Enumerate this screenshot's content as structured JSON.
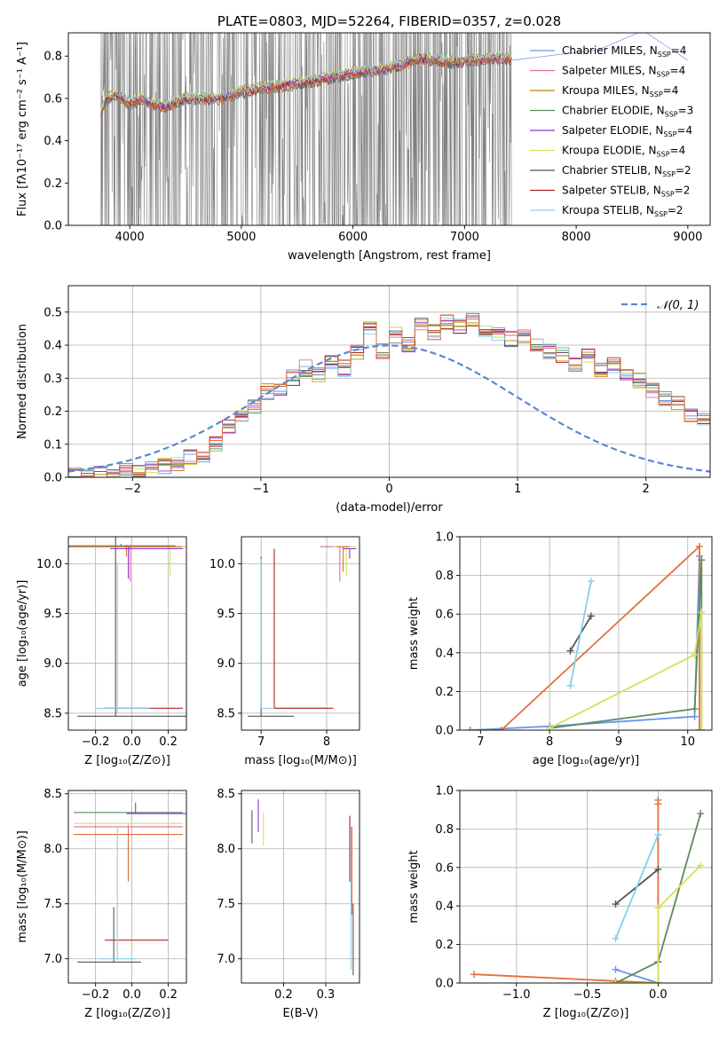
{
  "colors": {
    "chab_miles": "#6495ed",
    "salp_miles": "#db7093",
    "krou_miles": "#b8860b",
    "chab_elodie": "#5d8a5d",
    "salp_elodie": "#9932cc",
    "krou_elodie": "#d4e157",
    "chab_stelib": "#555555",
    "salp_stelib": "#b22222",
    "krou_stelib": "#87ceeb",
    "spectrum": "#808080",
    "highlight": "#e2703a",
    "gauss": "#5b86d6"
  },
  "chart_data": [
    {
      "id": "spectrum",
      "type": "line",
      "title": "PLATE=0803, MJD=52264, FIBERID=0357, z=0.028",
      "xlabel": "wavelength [Angstrom, rest frame]",
      "ylabel": "Flux [fλ10⁻¹⁷ erg cm⁻² s⁻¹ A⁻¹]",
      "xlim": [
        3450,
        9200
      ],
      "ylim": [
        0,
        0.91
      ],
      "xticks": [
        4000,
        5000,
        6000,
        7000,
        8000,
        9000
      ],
      "yticks": [
        0.0,
        0.2,
        0.4,
        0.6,
        0.8
      ],
      "data_range": [
        3740,
        7420
      ],
      "model_anchor_x": [
        3740,
        3800,
        3900,
        4000,
        4100,
        4300,
        4500,
        4800,
        5000,
        5200,
        5500,
        5800,
        6000,
        6300,
        6600,
        6900,
        7200,
        7400
      ],
      "model_anchor_y": [
        0.53,
        0.6,
        0.62,
        0.57,
        0.6,
        0.56,
        0.6,
        0.6,
        0.63,
        0.65,
        0.67,
        0.7,
        0.72,
        0.74,
        0.79,
        0.77,
        0.79,
        0.79
      ],
      "legend": {
        "placement": "upper right",
        "entries": [
          {
            "label": "Chabrier MILES, N",
            "sub": "SSP",
            "suffix": "=4",
            "color_key": "chab_miles"
          },
          {
            "label": "Salpeter MILES, N",
            "sub": "SSP",
            "suffix": "=4",
            "color_key": "salp_miles"
          },
          {
            "label": "Kroupa MILES, N",
            "sub": "SSP",
            "suffix": "=4",
            "color_key": "krou_miles"
          },
          {
            "label": "Chabrier ELODIE, N",
            "sub": "SSP",
            "suffix": "=3",
            "color_key": "chab_elodie"
          },
          {
            "label": "Salpeter ELODIE, N",
            "sub": "SSP",
            "suffix": "=4",
            "color_key": "salp_elodie"
          },
          {
            "label": "Kroupa ELODIE, N",
            "sub": "SSP",
            "suffix": "=4",
            "color_key": "krou_elodie"
          },
          {
            "label": "Chabrier STELIB, N",
            "sub": "SSP",
            "suffix": "=2",
            "color_key": "chab_stelib"
          },
          {
            "label": "Salpeter STELIB, N",
            "sub": "SSP",
            "suffix": "=2",
            "color_key": "salp_stelib"
          },
          {
            "label": "Kroupa STELIB, N",
            "sub": "SSP",
            "suffix": "=2",
            "color_key": "krou_stelib"
          }
        ]
      }
    },
    {
      "id": "residuals",
      "type": "line",
      "xlabel": "(data-model)/error",
      "ylabel": "Normed distribution",
      "xlim": [
        -2.5,
        2.5
      ],
      "ylim": [
        0,
        0.58
      ],
      "xticks": [
        -2,
        -1,
        0,
        1,
        2
      ],
      "yticks": [
        0.0,
        0.1,
        0.2,
        0.3,
        0.4,
        0.5
      ],
      "bin_width": 0.1,
      "bin_start": -2.5,
      "base_values": [
        0.005,
        0.01,
        0.012,
        0.015,
        0.018,
        0.022,
        0.027,
        0.034,
        0.042,
        0.06,
        0.07,
        0.1,
        0.15,
        0.19,
        0.21,
        0.26,
        0.27,
        0.3,
        0.33,
        0.31,
        0.35,
        0.33,
        0.38,
        0.45,
        0.38,
        0.43,
        0.4,
        0.47,
        0.44,
        0.47,
        0.46,
        0.48,
        0.45,
        0.44,
        0.42,
        0.43,
        0.4,
        0.38,
        0.37,
        0.34,
        0.37,
        0.33,
        0.34,
        0.31,
        0.29,
        0.26,
        0.24,
        0.22,
        0.19,
        0.18,
        0.15,
        0.13,
        0.1,
        0.09,
        0.08,
        0.06,
        0.05,
        0.04,
        0.03,
        0.03,
        0.03,
        0.02,
        0.02,
        0.02,
        0.01,
        0.01
      ],
      "gauss_label": "𝒩(0, 1)",
      "legend": {
        "placement": "upper right"
      }
    },
    {
      "id": "age_vs_Z",
      "type": "scatter",
      "xlabel": "Z [log₁₀(Z/Z⊙)]",
      "ylabel": "age  [log₁₀(age/yr)]",
      "xlim": [
        -0.35,
        0.3
      ],
      "ylim": [
        8.33,
        10.27
      ],
      "xticks": [
        -0.2,
        0.0,
        0.2
      ],
      "yticks": [
        8.5,
        9.0,
        9.5,
        10.0
      ],
      "ytick_labels": [
        "8.5",
        "9.0",
        "9.5",
        "10.0"
      ],
      "xtick_labels": [
        "−0.2",
        "0.0",
        "0.2"
      ],
      "points": [
        {
          "x": -0.09,
          "y": 10.17,
          "xerr": [
            0.4,
            0.38
          ],
          "yerr": [
            1.7,
            0.1
          ],
          "color_key": "chab_stelib"
        },
        {
          "x": -0.01,
          "y": 10.17,
          "xerr": [
            0.3,
            0.3
          ],
          "yerr": [
            0.35,
            0.02
          ],
          "color_key": "salp_miles"
        },
        {
          "x": 0.21,
          "y": 10.17,
          "xerr": [
            0.5,
            0.1
          ],
          "yerr": [
            0.3,
            0.02
          ],
          "color_key": "krou_elodie"
        },
        {
          "x": -0.03,
          "y": 10.17,
          "xerr": [
            0.4,
            0.3
          ],
          "yerr": [
            0.1,
            0.02
          ],
          "color_key": "highlight"
        },
        {
          "x": -0.06,
          "y": 10.18,
          "xerr": [
            0.3,
            0.3
          ],
          "yerr": [
            0.0,
            0.02
          ],
          "color_key": "chab_elodie"
        },
        {
          "x": -0.02,
          "y": 10.15,
          "xerr": [
            0.1,
            0.3
          ],
          "yerr": [
            0.3,
            0.02
          ],
          "color_key": "salp_elodie"
        },
        {
          "x": -0.2,
          "y": 8.47,
          "xerr": [
            0.1,
            0.5
          ],
          "yerr": [
            0.0,
            0.0
          ],
          "color_key": "chab_stelib"
        },
        {
          "x": 0.25,
          "y": 8.55,
          "xerr": [
            0.4,
            0.03
          ],
          "yerr": [
            0.0,
            0.0
          ],
          "color_key": "salp_stelib"
        },
        {
          "x": -0.1,
          "y": 8.55,
          "xerr": [
            0.1,
            0.2
          ],
          "yerr": [
            0.0,
            0.0
          ],
          "color_key": "krou_stelib"
        },
        {
          "x": -0.08,
          "y": 10.0,
          "xerr": [
            0.0,
            0.0
          ],
          "yerr": [
            1.5,
            0.0
          ],
          "color_key": "krou_stelib"
        }
      ]
    },
    {
      "id": "age_vs_mass",
      "type": "scatter",
      "xlabel": "mass [log₁₀(M/M⊙)]",
      "xlim": [
        6.7,
        8.5
      ],
      "ylim": [
        8.33,
        10.27
      ],
      "xticks": [
        7,
        8
      ],
      "yticks": [
        8.5,
        9.0,
        9.5,
        10.0
      ],
      "ytick_labels": [
        "8.5",
        "9.0",
        "9.5",
        "10.0"
      ],
      "xtick_labels": [
        "7",
        "8"
      ],
      "points": [
        {
          "x": 7.0,
          "y": 10.07,
          "xerr": [
            0.0,
            0.0
          ],
          "yerr": [
            1.6,
            0.0
          ],
          "color_key": "chab_stelib"
        },
        {
          "x": 7.2,
          "y": 10.15,
          "xerr": [
            0.0,
            0.0
          ],
          "yerr": [
            1.6,
            0.0
          ],
          "color_key": "salp_stelib"
        },
        {
          "x": 7.0,
          "y": 8.55,
          "xerr": [
            0.0,
            0.0
          ],
          "yerr": [
            0.0,
            1.5
          ],
          "color_key": "krou_stelib"
        },
        {
          "x": 7.02,
          "y": 8.55,
          "xerr": [
            0.0,
            1.0
          ],
          "yerr": [
            0.0,
            0.0
          ],
          "color_key": "krou_stelib"
        },
        {
          "x": 7.5,
          "y": 8.55,
          "xerr": [
            0.3,
            0.6
          ],
          "yerr": [
            0.0,
            0.0
          ],
          "color_key": "salp_stelib"
        },
        {
          "x": 7.1,
          "y": 8.47,
          "xerr": [
            0.3,
            0.4
          ],
          "yerr": [
            0.0,
            0.0
          ],
          "color_key": "chab_stelib"
        },
        {
          "x": 8.2,
          "y": 10.17,
          "xerr": [
            0.3,
            0.1
          ],
          "yerr": [
            0.35,
            0.0
          ],
          "color_key": "salp_miles"
        },
        {
          "x": 8.3,
          "y": 10.17,
          "xerr": [
            0.2,
            0.15
          ],
          "yerr": [
            0.3,
            0.0
          ],
          "color_key": "krou_elodie"
        },
        {
          "x": 8.25,
          "y": 10.17,
          "xerr": [
            0.1,
            0.1
          ],
          "yerr": [
            0.25,
            0.0
          ],
          "color_key": "highlight"
        },
        {
          "x": 8.35,
          "y": 10.15,
          "xerr": [
            0.1,
            0.1
          ],
          "yerr": [
            0.1,
            0.0
          ],
          "color_key": "salp_elodie"
        }
      ]
    },
    {
      "id": "weight_vs_age",
      "type": "line",
      "xlabel": "age  [log₁₀(age/yr)]",
      "ylabel": "mass weight",
      "xlim": [
        6.7,
        10.35
      ],
      "ylim": [
        0,
        1.0
      ],
      "xticks": [
        7,
        8,
        9,
        10
      ],
      "yticks": [
        0.0,
        0.2,
        0.4,
        0.6,
        0.8,
        1.0
      ],
      "xtick_labels": [
        "7",
        "8",
        "9",
        "10"
      ],
      "ytick_labels": [
        "0.0",
        "0.2",
        "0.4",
        "0.6",
        "0.8",
        "1.0"
      ],
      "series": [
        {
          "color_key": "chab_miles",
          "x": [
            6.85,
            8.0,
            10.1,
            10.17
          ],
          "y": [
            0.0,
            0.02,
            0.07,
            0.9
          ]
        },
        {
          "color_key": "highlight",
          "x": [
            6.85,
            7.3,
            10.17,
            10.17
          ],
          "y": [
            0.0,
            0.0,
            0.95,
            0.0
          ]
        },
        {
          "color_key": "chab_elodie",
          "x": [
            8.0,
            10.1,
            10.2,
            10.2
          ],
          "y": [
            0.01,
            0.11,
            0.88,
            0.0
          ]
        },
        {
          "color_key": "krou_elodie",
          "x": [
            8.0,
            10.1,
            10.2,
            10.2
          ],
          "y": [
            0.01,
            0.39,
            0.61,
            0.0
          ]
        },
        {
          "color_key": "chab_stelib",
          "x": [
            8.3,
            8.6
          ],
          "y": [
            0.41,
            0.59
          ]
        },
        {
          "color_key": "krou_stelib",
          "x": [
            8.3,
            8.6
          ],
          "y": [
            0.23,
            0.77
          ]
        }
      ]
    },
    {
      "id": "mass_vs_Z",
      "type": "scatter",
      "xlabel": "Z [log₁₀(Z/Z⊙)]",
      "ylabel": "mass [log₁₀(M/M⊙)]",
      "xlim": [
        -0.35,
        0.3
      ],
      "ylim": [
        6.78,
        8.53
      ],
      "xticks": [
        -0.2,
        0.0,
        0.2
      ],
      "yticks": [
        7.0,
        7.5,
        8.0,
        8.5
      ],
      "xtick_labels": [
        "−0.2",
        "0.0",
        "0.2"
      ],
      "ytick_labels": [
        "7.0",
        "7.5",
        "8.0",
        "8.5"
      ],
      "points": [
        {
          "x": -0.02,
          "y": 8.33,
          "xerr": [
            0.3,
            0.3
          ],
          "yerr": [
            0.0,
            0.0
          ],
          "color_key": "chab_elodie"
        },
        {
          "x": -0.02,
          "y": 8.23,
          "xerr": [
            0.3,
            0.3
          ],
          "yerr": [
            0.5,
            0.0
          ],
          "color_key": "krou_elodie"
        },
        {
          "x": -0.02,
          "y": 8.2,
          "xerr": [
            0.3,
            0.3
          ],
          "yerr": [
            0.5,
            0.0
          ],
          "color_key": "salp_miles"
        },
        {
          "x": -0.02,
          "y": 8.13,
          "xerr": [
            0.3,
            0.3
          ],
          "yerr": [
            0.4,
            0.0
          ],
          "color_key": "highlight"
        },
        {
          "x": 0.02,
          "y": 8.32,
          "xerr": [
            0.05,
            0.3
          ],
          "yerr": [
            0.0,
            0.1
          ],
          "color_key": "salp_elodie"
        },
        {
          "x": -0.1,
          "y": 7.17,
          "xerr": [
            0.05,
            0.3
          ],
          "yerr": [
            0.0,
            0.0
          ],
          "color_key": "salp_stelib"
        },
        {
          "x": -0.1,
          "y": 6.97,
          "xerr": [
            0.2,
            0.15
          ],
          "yerr": [
            0.0,
            0.5
          ],
          "color_key": "chab_stelib"
        },
        {
          "x": -0.08,
          "y": 7.0,
          "xerr": [
            0.1,
            0.1
          ],
          "yerr": [
            0.0,
            1.2
          ],
          "color_key": "krou_stelib"
        }
      ]
    },
    {
      "id": "mass_vs_ebv",
      "type": "scatter",
      "xlabel": "E(B-V)",
      "xlim": [
        0.1,
        0.38
      ],
      "ylim": [
        6.78,
        8.53
      ],
      "xticks": [
        0.2,
        0.3
      ],
      "yticks": [
        7.0,
        7.5,
        8.0,
        8.5
      ],
      "xtick_labels": [
        "0.2",
        "0.3"
      ],
      "ytick_labels": [
        "7.0",
        "7.5",
        "8.0",
        "8.5"
      ],
      "points": [
        {
          "x": 0.125,
          "y": 8.2,
          "xerr": [
            0.0,
            0.0
          ],
          "yerr": [
            0.15,
            0.15
          ],
          "color_key": "chab_stelib"
        },
        {
          "x": 0.14,
          "y": 8.3,
          "xerr": [
            0.0,
            0.0
          ],
          "yerr": [
            0.15,
            0.15
          ],
          "color_key": "salp_elodie"
        },
        {
          "x": 0.152,
          "y": 8.18,
          "xerr": [
            0.0,
            0.0
          ],
          "yerr": [
            0.15,
            0.15
          ],
          "color_key": "krou_elodie"
        },
        {
          "x": 0.357,
          "y": 8.0,
          "xerr": [
            0.0,
            0.0
          ],
          "yerr": [
            0.3,
            0.3
          ],
          "color_key": "salp_stelib"
        },
        {
          "x": 0.36,
          "y": 7.5,
          "xerr": [
            0.0,
            0.0
          ],
          "yerr": [
            0.6,
            0.7
          ],
          "color_key": "krou_stelib"
        },
        {
          "x": 0.362,
          "y": 7.8,
          "xerr": [
            0.0,
            0.0
          ],
          "yerr": [
            0.4,
            0.4
          ],
          "color_key": "highlight"
        },
        {
          "x": 0.365,
          "y": 7.1,
          "xerr": [
            0.0,
            0.0
          ],
          "yerr": [
            0.25,
            0.4
          ],
          "color_key": "chab_stelib"
        }
      ]
    },
    {
      "id": "weight_vs_Z",
      "type": "line",
      "xlabel": "Z [log₁₀(Z/Z⊙)]",
      "ylabel": "mass weight",
      "xlim": [
        -1.4,
        0.38
      ],
      "ylim": [
        0,
        1.0
      ],
      "xticks": [
        -1.0,
        -0.5,
        0.0
      ],
      "yticks": [
        0.0,
        0.2,
        0.4,
        0.6,
        0.8,
        1.0
      ],
      "xtick_labels": [
        "−1.0",
        "−0.5",
        "0.0"
      ],
      "ytick_labels": [
        "0.0",
        "0.2",
        "0.4",
        "0.6",
        "0.8",
        "1.0"
      ],
      "series": [
        {
          "color_key": "highlight",
          "x": [
            -1.3,
            -0.3,
            0.0,
            0.0,
            0.0
          ],
          "y": [
            0.045,
            0.01,
            0.0,
            0.95,
            0.93
          ]
        },
        {
          "color_key": "chab_miles",
          "x": [
            -0.3,
            0.0
          ],
          "y": [
            0.07,
            0.0
          ]
        },
        {
          "color_key": "chab_elodie",
          "x": [
            -0.3,
            0.0,
            0.3
          ],
          "y": [
            0.0,
            0.11,
            0.88
          ]
        },
        {
          "color_key": "krou_elodie",
          "x": [
            -0.3,
            0.0,
            0.0,
            0.3
          ],
          "y": [
            0.0,
            0.0,
            0.39,
            0.61
          ]
        },
        {
          "color_key": "chab_stelib",
          "x": [
            -0.3,
            0.0
          ],
          "y": [
            0.41,
            0.59
          ]
        },
        {
          "color_key": "krou_stelib",
          "x": [
            -0.3,
            0.0
          ],
          "y": [
            0.23,
            0.77
          ]
        }
      ]
    }
  ]
}
